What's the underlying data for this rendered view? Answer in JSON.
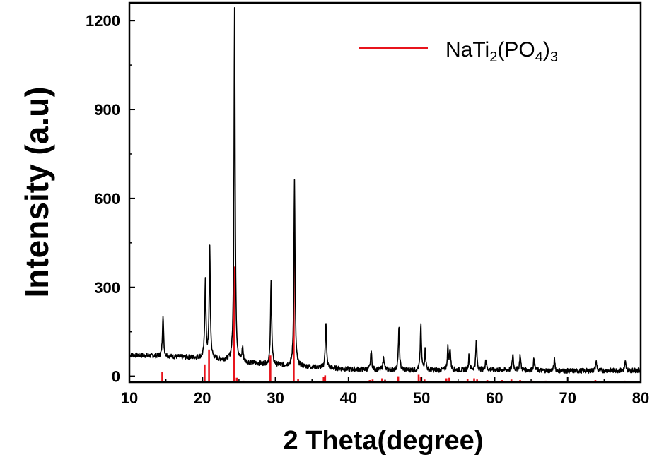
{
  "chart_data": {
    "type": "line",
    "xlabel": "2 Theta(degree)",
    "ylabel": "Intensity (a.u)",
    "xlim": [
      10,
      80
    ],
    "ylim": [
      -20,
      1260
    ],
    "x_ticks": [
      10,
      20,
      30,
      40,
      50,
      60,
      70,
      80
    ],
    "y_ticks": [
      0,
      300,
      600,
      900,
      1200
    ],
    "grid": false,
    "legend_position": "top-right",
    "colors": {
      "pattern": "#000000",
      "reference": "#e8141c"
    },
    "legend": {
      "name": "NaTi",
      "sub1": "2",
      "mid": "(PO",
      "sub2": "4",
      "close": ")",
      "sub3": "3"
    },
    "series": [
      {
        "type": "line",
        "baseline": [
          [
            10,
            72
          ],
          [
            20,
            62
          ],
          [
            25,
            48
          ],
          [
            30,
            38
          ],
          [
            40,
            24
          ],
          [
            50,
            20
          ],
          [
            60,
            22
          ],
          [
            70,
            18
          ],
          [
            80,
            20
          ]
        ],
        "peaks": [
          [
            14.6,
            210
          ],
          [
            20.4,
            330
          ],
          [
            21.0,
            432
          ],
          [
            24.4,
            1250
          ],
          [
            25.5,
            95
          ],
          [
            29.4,
            330
          ],
          [
            32.6,
            660
          ],
          [
            36.9,
            188
          ],
          [
            43.1,
            88
          ],
          [
            44.8,
            70
          ],
          [
            46.9,
            165
          ],
          [
            49.9,
            175
          ],
          [
            50.5,
            90
          ],
          [
            53.6,
            95
          ],
          [
            53.9,
            92
          ],
          [
            56.5,
            70
          ],
          [
            57.5,
            122
          ],
          [
            58.8,
            58
          ],
          [
            62.5,
            75
          ],
          [
            63.5,
            72
          ],
          [
            65.4,
            60
          ],
          [
            68.2,
            55
          ],
          [
            73.9,
            52
          ],
          [
            77.9,
            48
          ]
        ]
      },
      {
        "type": "stick",
        "values": [
          [
            14.5,
            40
          ],
          [
            20.3,
            65
          ],
          [
            20.9,
            115
          ],
          [
            24.3,
            395
          ],
          [
            24.7,
            20
          ],
          [
            25.6,
            10
          ],
          [
            29.3,
            95
          ],
          [
            32.5,
            510
          ],
          [
            33.1,
            15
          ],
          [
            36.6,
            22
          ],
          [
            36.8,
            28
          ],
          [
            42.9,
            12
          ],
          [
            43.3,
            14
          ],
          [
            44.6,
            18
          ],
          [
            45.0,
            12
          ],
          [
            46.8,
            25
          ],
          [
            49.6,
            30
          ],
          [
            49.9,
            24
          ],
          [
            50.4,
            14
          ],
          [
            53.4,
            18
          ],
          [
            53.8,
            20
          ],
          [
            56.3,
            15
          ],
          [
            57.2,
            18
          ],
          [
            57.6,
            14
          ],
          [
            59.0,
            12
          ],
          [
            61.0,
            12
          ],
          [
            62.3,
            14
          ],
          [
            63.5,
            12
          ],
          [
            65.2,
            10
          ],
          [
            67.0,
            10
          ],
          [
            69.6,
            8
          ],
          [
            73.8,
            12
          ],
          [
            75.3,
            8
          ],
          [
            77.8,
            10
          ],
          [
            78.6,
            8
          ]
        ]
      }
    ]
  }
}
